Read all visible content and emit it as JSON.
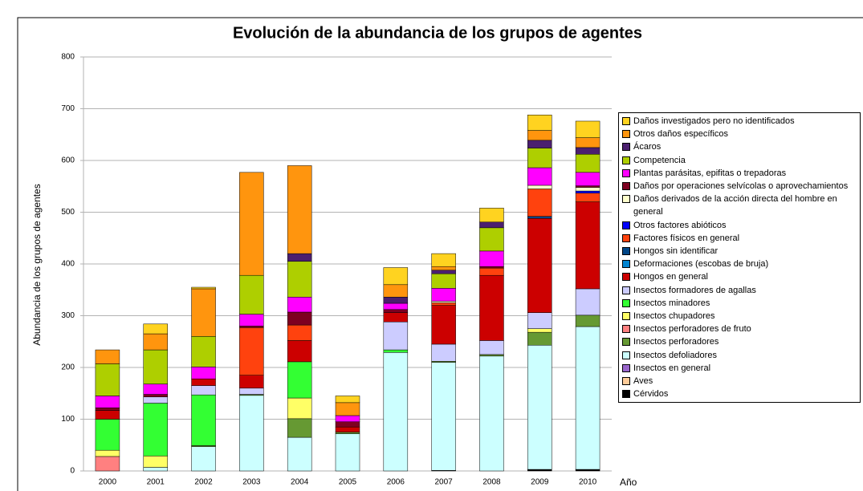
{
  "chart_data": {
    "type": "stacked_bar",
    "title": "Evolución de la abundancia de los grupos de agentes",
    "y_label": "Abundancia de los grupos de agentes",
    "x_label": "Año",
    "categories": [
      "2000",
      "2001",
      "2002",
      "2003",
      "2004",
      "2005",
      "2006",
      "2007",
      "2008",
      "2009",
      "2010"
    ],
    "ylim": [
      0,
      800
    ],
    "yticks": [
      0,
      100,
      200,
      300,
      400,
      500,
      600,
      700,
      800
    ],
    "grid": true,
    "series": [
      {
        "name": "Cérvidos",
        "color": "#000000",
        "values": [
          0,
          0,
          0,
          0,
          0,
          0,
          0,
          1,
          0,
          3,
          3
        ]
      },
      {
        "name": "Aves",
        "color": "#ffcc99",
        "values": [
          0,
          0,
          0,
          0,
          0,
          0,
          0,
          0,
          0,
          0,
          0
        ]
      },
      {
        "name": "Insectos en general",
        "color": "#9966cc",
        "values": [
          0,
          0,
          0,
          0,
          0,
          0,
          0,
          0,
          0,
          0,
          0
        ]
      },
      {
        "name": "Insectos defoliadores",
        "color": "#ccffff",
        "values": [
          0,
          7,
          47,
          146,
          65,
          72,
          229,
          209,
          222,
          240,
          276
        ]
      },
      {
        "name": "Insectos perforadores",
        "color": "#669933",
        "values": [
          0,
          0,
          2,
          2,
          36,
          3,
          0,
          2,
          3,
          25,
          22
        ]
      },
      {
        "name": "Insectos perforadores de fruto",
        "color": "#ff8080",
        "values": [
          28,
          0,
          0,
          0,
          0,
          0,
          0,
          0,
          0,
          0,
          0
        ]
      },
      {
        "name": "Insectos chupadores",
        "color": "#ffff66",
        "values": [
          12,
          22,
          0,
          0,
          40,
          0,
          0,
          0,
          0,
          7,
          0
        ]
      },
      {
        "name": "Insectos minadores",
        "color": "#33ff33",
        "values": [
          60,
          102,
          98,
          0,
          70,
          0,
          5,
          0,
          0,
          0,
          0
        ]
      },
      {
        "name": "Insectos formadores de agallas",
        "color": "#ccccff",
        "values": [
          0,
          12,
          18,
          12,
          0,
          0,
          54,
          33,
          27,
          31,
          51
        ]
      },
      {
        "name": "Hongos en general",
        "color": "#cc0000",
        "values": [
          17,
          0,
          13,
          25,
          41,
          10,
          18,
          75,
          126,
          182,
          168
        ]
      },
      {
        "name": "Deformaciones (escobas de bruja)",
        "color": "#0084d1",
        "values": [
          0,
          0,
          0,
          0,
          0,
          0,
          0,
          0,
          0,
          0,
          0
        ]
      },
      {
        "name": "Hongos sin identificar",
        "color": "#004586",
        "values": [
          0,
          0,
          0,
          0,
          0,
          0,
          0,
          0,
          0,
          4,
          0
        ]
      },
      {
        "name": "Factores físicos en general",
        "color": "#ff420e",
        "values": [
          0,
          0,
          0,
          92,
          30,
          0,
          0,
          5,
          14,
          53,
          17
        ]
      },
      {
        "name": "Otros  factores abióticos",
        "color": "#0000ff",
        "values": [
          0,
          0,
          0,
          0,
          0,
          0,
          0,
          0,
          0,
          0,
          4
        ]
      },
      {
        "name": "Daños derivados de la acción directa del hombre en general",
        "color": "#ffffcc",
        "values": [
          0,
          0,
          0,
          0,
          0,
          0,
          0,
          3,
          0,
          7,
          7
        ]
      },
      {
        "name": "Daños por operaciones selvícolas o aprovechamientos",
        "color": "#7e0021",
        "values": [
          5,
          5,
          0,
          3,
          25,
          10,
          6,
          0,
          3,
          0,
          3
        ]
      },
      {
        "name": "Plantas parásitas, epifitas o trepadoras",
        "color": "#ff00ff",
        "values": [
          23,
          20,
          23,
          23,
          29,
          12,
          12,
          25,
          30,
          34,
          26
        ]
      },
      {
        "name": "Competencia",
        "color": "#aecf00",
        "values": [
          62,
          66,
          59,
          75,
          69,
          0,
          0,
          28,
          45,
          38,
          35
        ]
      },
      {
        "name": "Ácaros",
        "color": "#4b1f6f",
        "values": [
          0,
          0,
          0,
          0,
          15,
          0,
          12,
          7,
          11,
          15,
          13
        ]
      },
      {
        "name": "Otros daños específicos",
        "color": "#ff950e",
        "values": [
          27,
          31,
          92,
          199,
          170,
          25,
          24,
          7,
          0,
          19,
          19
        ]
      },
      {
        "name": "Daños investigados pero no identificados",
        "color": "#ffd320",
        "values": [
          0,
          19,
          3,
          0,
          0,
          13,
          33,
          25,
          27,
          30,
          32
        ]
      }
    ]
  }
}
